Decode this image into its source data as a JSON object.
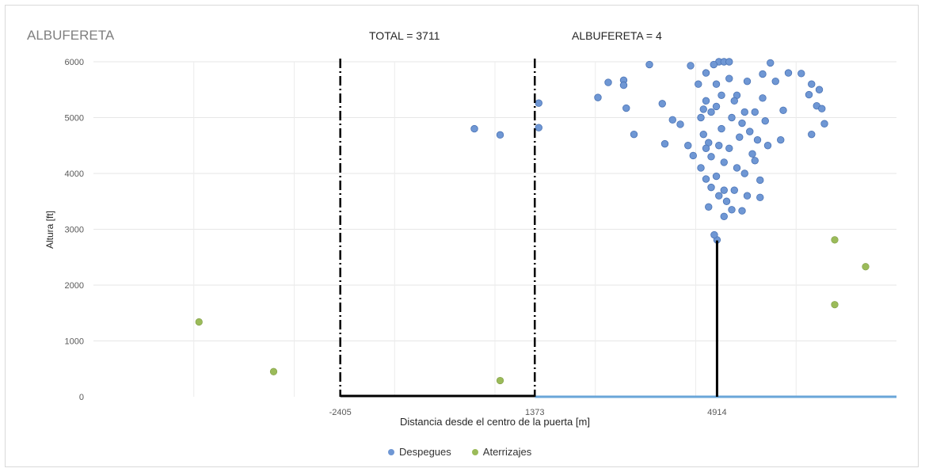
{
  "header": {
    "location": "ALBUFERETA",
    "total_text": "TOTAL =  3711",
    "location_count_text": "ALBUFERETA = 4"
  },
  "colors": {
    "despegues": "#6f97d4",
    "aterrizajes": "#9bbb59",
    "ground_line": "#6aa6d8",
    "vertical_marker": "#000000",
    "gate_lines": "#000000"
  },
  "chart_data": {
    "type": "scatter",
    "title": "",
    "xlabel": "Distancia desde el centro de la puerta [m]",
    "ylabel": "Altura [ft]",
    "xlim": [
      -7200,
      8400
    ],
    "ylim": [
      0,
      6000
    ],
    "y_ticks": [
      0,
      1000,
      2000,
      3000,
      4000,
      5000,
      6000
    ],
    "x_tick_labels": [
      {
        "x": -2405,
        "label": "-2405"
      },
      {
        "x": 1373,
        "label": "1373"
      },
      {
        "x": 4914,
        "label": "4914"
      }
    ],
    "gate_lines_x": [
      -2405,
      1373
    ],
    "vertical_marker_x": 4914,
    "grid": true,
    "legend_position": "bottom",
    "series": [
      {
        "name": "Despegues",
        "points": [
          [
            4914,
            2810
          ],
          [
            4860,
            2900
          ],
          [
            5050,
            3230
          ],
          [
            5200,
            3350
          ],
          [
            5400,
            3330
          ],
          [
            1450,
            4820
          ],
          [
            1450,
            5260
          ],
          [
            700,
            4690
          ],
          [
            200,
            4800
          ],
          [
            2600,
            5360
          ],
          [
            3100,
            5670
          ],
          [
            3100,
            5580
          ],
          [
            2800,
            5630
          ],
          [
            3900,
            4530
          ],
          [
            4050,
            4960
          ],
          [
            4400,
            5930
          ],
          [
            3600,
            5950
          ],
          [
            3150,
            5170
          ],
          [
            3300,
            4700
          ],
          [
            3850,
            5250
          ],
          [
            4200,
            4880
          ],
          [
            4450,
            4320
          ],
          [
            4350,
            4500
          ],
          [
            5800,
            5780
          ],
          [
            6050,
            5650
          ],
          [
            5950,
            5980
          ],
          [
            6300,
            5800
          ],
          [
            6200,
            5130
          ],
          [
            5850,
            4940
          ],
          [
            5900,
            4500
          ],
          [
            6150,
            4600
          ],
          [
            5650,
            4230
          ],
          [
            5750,
            3570
          ],
          [
            6550,
            5790
          ],
          [
            6750,
            5600
          ],
          [
            6700,
            5410
          ],
          [
            6850,
            5210
          ],
          [
            7000,
            4890
          ],
          [
            6950,
            5160
          ],
          [
            6750,
            4700
          ],
          [
            6900,
            5500
          ],
          [
            5500,
            3600
          ],
          [
            5750,
            3880
          ],
          [
            4600,
            5000
          ],
          [
            4550,
            5600
          ],
          [
            4600,
            4100
          ],
          [
            4700,
            3900
          ],
          [
            4750,
            3400
          ],
          [
            4700,
            5300
          ],
          [
            4650,
            4700
          ],
          [
            4700,
            5800
          ],
          [
            4800,
            4300
          ],
          [
            4800,
            5100
          ],
          [
            5300,
            5400
          ],
          [
            5350,
            4650
          ],
          [
            5400,
            4900
          ],
          [
            5300,
            4100
          ],
          [
            5250,
            3700
          ],
          [
            5150,
            5700
          ],
          [
            5100,
            3500
          ],
          [
            4950,
            6000
          ],
          [
            5050,
            6000
          ],
          [
            5150,
            6000
          ],
          [
            4850,
            5950
          ],
          [
            4900,
            5600
          ],
          [
            5000,
            5400
          ],
          [
            4900,
            5200
          ],
          [
            5000,
            4800
          ],
          [
            4950,
            4500
          ],
          [
            5050,
            4200
          ],
          [
            4900,
            3950
          ],
          [
            5050,
            3700
          ],
          [
            4950,
            3600
          ],
          [
            4800,
            3750
          ],
          [
            5150,
            4450
          ],
          [
            5200,
            5000
          ],
          [
            5250,
            5300
          ],
          [
            4750,
            4550
          ],
          [
            4650,
            5150
          ],
          [
            4700,
            4450
          ],
          [
            5450,
            5100
          ],
          [
            5500,
            5650
          ],
          [
            5550,
            4750
          ],
          [
            5600,
            4350
          ],
          [
            5450,
            4000
          ],
          [
            5700,
            4600
          ],
          [
            5650,
            5100
          ],
          [
            5800,
            5350
          ]
        ]
      },
      {
        "name": "Aterrizajes",
        "points": [
          [
            -5150,
            1340
          ],
          [
            -3700,
            450
          ],
          [
            700,
            290
          ],
          [
            7200,
            2810
          ],
          [
            7800,
            2330
          ],
          [
            7200,
            1650
          ]
        ]
      }
    ]
  }
}
